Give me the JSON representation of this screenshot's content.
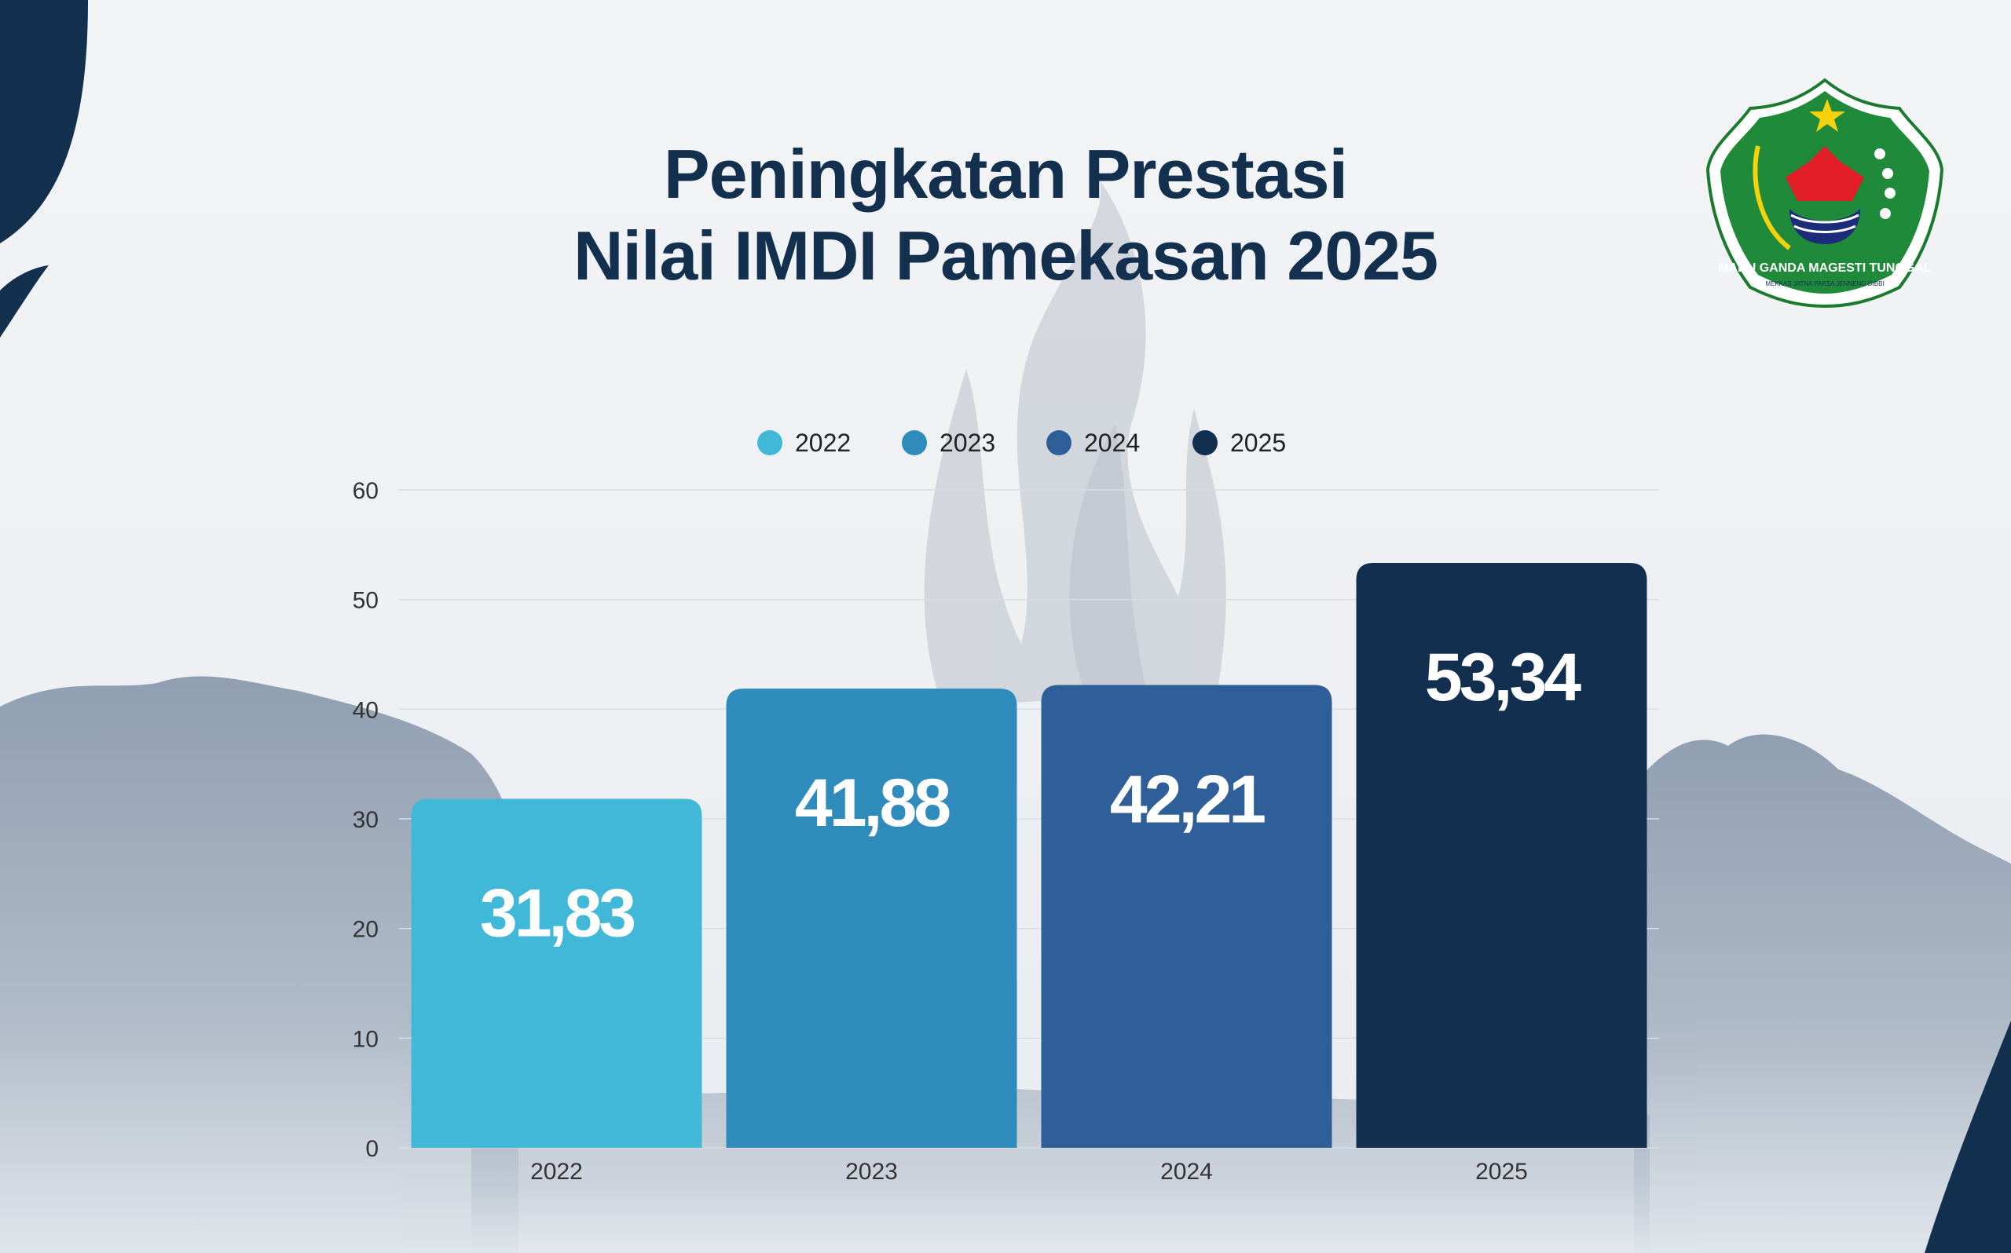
{
  "title_line_1": "Peningkatan Prestasi",
  "title_line_2": "Nilai IMDI Pamekasan 2025",
  "logo": {
    "text_main": "MADU GANDA MAGESTI TUNGGAL",
    "text_sub": "MEKKAS JATNA PAKSA JENNENG DIBBI"
  },
  "colors": {
    "navy": "#13304f",
    "s2022": "#42b8d8",
    "s2023": "#2e8bbb",
    "s2024": "#2f5f98",
    "s2025": "#132f50"
  },
  "chart_data": {
    "type": "bar",
    "categories": [
      "2022",
      "2023",
      "2024",
      "2025"
    ],
    "values": [
      31.83,
      41.88,
      42.21,
      53.34
    ],
    "value_labels": [
      "31,83",
      "41,88",
      "42,21",
      "53,34"
    ],
    "legend": [
      "2022",
      "2023",
      "2024",
      "2025"
    ],
    "legend_position": "top-center",
    "ylim": [
      0,
      60
    ],
    "yticks": [
      "0",
      "10",
      "20",
      "30",
      "40",
      "50",
      "60"
    ],
    "grid": true
  }
}
